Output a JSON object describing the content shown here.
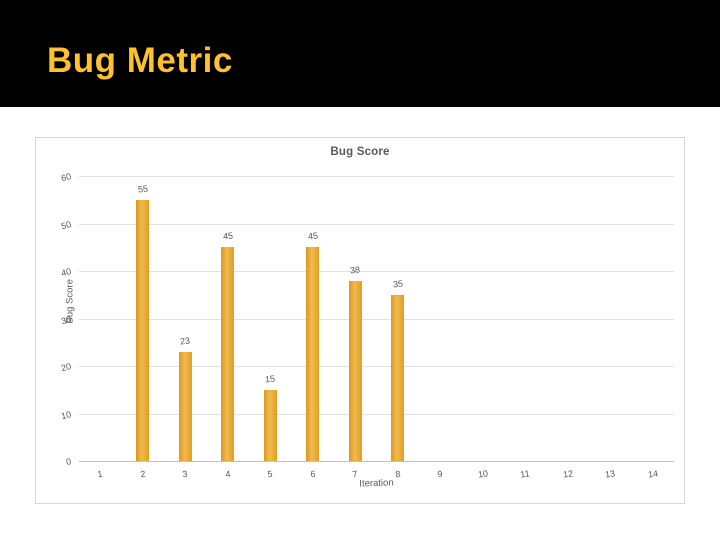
{
  "slide": {
    "title": "Bug Metric",
    "title_color": "#FFC12E",
    "header_bg": "#000000",
    "body_bg": "#FFFFFF"
  },
  "chart_data": {
    "type": "bar",
    "title": "Bug Score",
    "xlabel": "Iteration",
    "ylabel": "Bug Score",
    "categories": [
      "1",
      "2",
      "3",
      "4",
      "5",
      "6",
      "7",
      "8",
      "9",
      "10",
      "11",
      "12",
      "13",
      "14"
    ],
    "values": [
      null,
      55,
      23,
      45,
      15,
      45,
      38,
      35,
      null,
      null,
      null,
      null,
      null,
      null
    ],
    "data_labels": [
      null,
      "55",
      "23",
      "45",
      "15",
      "45",
      "38",
      "35",
      null,
      null,
      null,
      null,
      null,
      null
    ],
    "ylim": [
      0,
      60
    ],
    "ytick_step": 10,
    "ytick_labels": [
      "0",
      "10",
      "20",
      "30",
      "40",
      "50",
      "60"
    ],
    "grid": true,
    "legend": false,
    "bar_color": "#EEA621",
    "text_color": "#595959",
    "grid_color": "#E2E2E2",
    "zero_line_color": "#C2C2C2",
    "border_color": "#D7D7D7"
  }
}
